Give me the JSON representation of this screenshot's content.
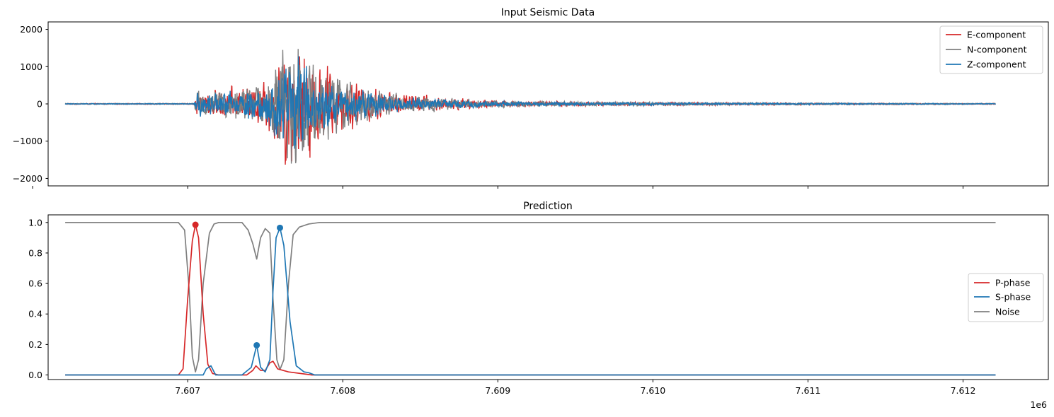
{
  "chart_data": [
    {
      "type": "line",
      "title": "Input Seismic Data",
      "xlabel": "",
      "ylabel": "",
      "xlim": [
        7606100,
        7612550
      ],
      "ylim": [
        -2200,
        2200
      ],
      "yticks": [
        -2000,
        -1000,
        0,
        1000,
        2000
      ],
      "ytick_labels": [
        "−2000",
        "−1000",
        "0",
        "1000",
        "2000"
      ],
      "xticks": [
        7606000,
        7607000,
        7608000,
        7609000,
        7610000,
        7611000,
        7612000
      ],
      "xtick_labels": [
        "",
        "",
        "",
        "",
        "",
        "",
        ""
      ],
      "legend_position": "top-right",
      "grid": false,
      "series": [
        {
          "name": "E-component",
          "color": "#d62728",
          "envelope": {
            "x": [
              7606210,
              7607040,
              7607060,
              7607200,
              7607350,
              7607500,
              7607600,
              7607700,
              7607800,
              7607950,
              7608150,
              7608400,
              7608800,
              7609200,
              7609800,
              7610500,
              7611200,
              7612210
            ],
            "amp": [
              15,
              15,
              300,
              380,
              450,
              600,
              1500,
              1800,
              1300,
              900,
              500,
              280,
              140,
              80,
              50,
              35,
              25,
              15
            ]
          }
        },
        {
          "name": "N-component",
          "color": "#7f7f7f",
          "envelope": {
            "x": [
              7606210,
              7607040,
              7607060,
              7607200,
              7607350,
              7607500,
              7607600,
              7607700,
              7607800,
              7607950,
              7608150,
              7608400,
              7608800,
              7609200,
              7609800,
              7610500,
              7611200,
              7612210
            ],
            "amp": [
              15,
              15,
              400,
              380,
              450,
              600,
              1500,
              2000,
              1300,
              800,
              450,
              250,
              130,
              75,
              50,
              35,
              25,
              15
            ]
          }
        },
        {
          "name": "Z-component",
          "color": "#1f77b4",
          "envelope": {
            "x": [
              7606210,
              7607040,
              7607060,
              7607200,
              7607350,
              7607500,
              7607600,
              7607700,
              7607800,
              7607950,
              7608150,
              7608400,
              7608800,
              7609200,
              7609800,
              7610500,
              7611200,
              7612210
            ],
            "amp": [
              12,
              12,
              350,
              300,
              380,
              550,
              1200,
              1400,
              900,
              600,
              350,
              200,
              100,
              60,
              40,
              30,
              22,
              12
            ]
          }
        }
      ]
    },
    {
      "type": "line",
      "title": "Prediction",
      "xlabel": "",
      "ylabel": "",
      "xlim": [
        7606100,
        7612550
      ],
      "ylim": [
        -0.03,
        1.05
      ],
      "yticks": [
        0.0,
        0.2,
        0.4,
        0.6,
        0.8,
        1.0
      ],
      "ytick_labels": [
        "0.0",
        "0.2",
        "0.4",
        "0.6",
        "0.8",
        "1.0"
      ],
      "xticks": [
        7607000,
        7608000,
        7609000,
        7610000,
        7611000,
        7612000
      ],
      "xtick_labels": [
        "7.607",
        "7.608",
        "7.609",
        "7.610",
        "7.611",
        "7.612"
      ],
      "offset_text": "1e6",
      "legend_position": "center-right",
      "grid": false,
      "series": [
        {
          "name": "P-phase",
          "color": "#d62728",
          "x": [
            7606210,
            7606660,
            7606940,
            7606970,
            7607000,
            7607030,
            7607050,
            7607070,
            7607100,
            7607130,
            7607145,
            7607160,
            7607200,
            7607380,
            7607420,
            7607440,
            7607470,
            7607500,
            7607530,
            7607550,
            7607580,
            7607650,
            7607800,
            7612210
          ],
          "y": [
            0.0,
            0.0,
            0.0,
            0.04,
            0.5,
            0.88,
            0.985,
            0.9,
            0.4,
            0.07,
            0.04,
            0.01,
            0.0,
            0.0,
            0.03,
            0.06,
            0.03,
            0.03,
            0.08,
            0.09,
            0.04,
            0.02,
            0.0,
            0.0
          ]
        },
        {
          "name": "S-phase",
          "color": "#1f77b4",
          "x": [
            7606210,
            7607100,
            7607120,
            7607150,
            7607180,
            7607350,
            7607410,
            7607445,
            7607470,
            7607500,
            7607530,
            7607550,
            7607570,
            7607595,
            7607620,
            7607660,
            7607700,
            7607750,
            7607780,
            7607820,
            7612210
          ],
          "y": [
            0.0,
            0.0,
            0.04,
            0.06,
            0.0,
            0.0,
            0.05,
            0.195,
            0.05,
            0.02,
            0.1,
            0.55,
            0.9,
            0.965,
            0.85,
            0.35,
            0.06,
            0.02,
            0.015,
            0.0,
            0.0
          ]
        },
        {
          "name": "Noise",
          "color": "#7f7f7f",
          "x": [
            7606210,
            7606940,
            7606980,
            7607010,
            7607030,
            7607050,
            7607070,
            7607100,
            7607140,
            7607170,
            7607200,
            7607350,
            7607390,
            7607420,
            7607445,
            7607470,
            7607500,
            7607530,
            7607550,
            7607575,
            7607595,
            7607620,
            7607650,
            7607680,
            7607720,
            7607780,
            7607850,
            7612210
          ],
          "y": [
            1.0,
            1.0,
            0.95,
            0.55,
            0.12,
            0.02,
            0.1,
            0.6,
            0.93,
            0.99,
            1.0,
            1.0,
            0.95,
            0.86,
            0.76,
            0.9,
            0.96,
            0.93,
            0.5,
            0.1,
            0.035,
            0.1,
            0.6,
            0.92,
            0.97,
            0.99,
            1.0,
            1.0
          ]
        }
      ],
      "peak_markers": [
        {
          "series": "P-phase",
          "x": 7607050,
          "y": 0.985,
          "color": "#d62728"
        },
        {
          "series": "S-phase",
          "x": 7607445,
          "y": 0.195,
          "color": "#1f77b4"
        },
        {
          "series": "S-phase",
          "x": 7607595,
          "y": 0.965,
          "color": "#1f77b4"
        }
      ]
    }
  ]
}
